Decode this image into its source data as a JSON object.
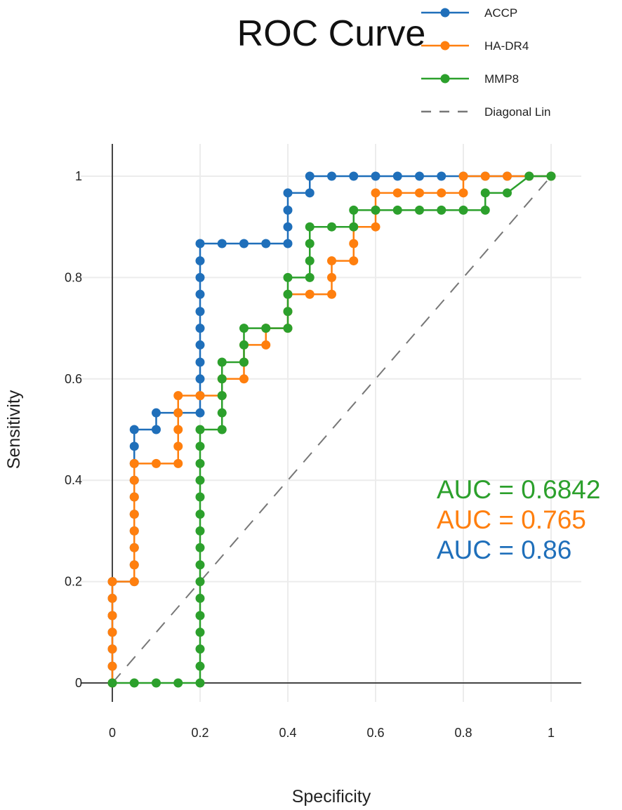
{
  "chart_data": {
    "type": "line",
    "title": "ROC Curve",
    "xlabel": "Specificity",
    "ylabel": "Sensitivity",
    "xlim": [
      0,
      1
    ],
    "ylim": [
      0,
      1
    ],
    "grid": true,
    "legend_position": "top-right",
    "xticks": [
      "0",
      "0.2",
      "0.4",
      "0.6",
      "0.8",
      "1"
    ],
    "yticks": [
      "0",
      "0.2",
      "0.4",
      "0.6",
      "0.8",
      "1"
    ],
    "series": [
      {
        "name": "ACCP",
        "color": "#1f6fba",
        "points": [
          [
            0,
            0
          ],
          [
            0,
            0.033
          ],
          [
            0,
            0.067
          ],
          [
            0,
            0.1
          ],
          [
            0,
            0.133
          ],
          [
            0,
            0.167
          ],
          [
            0,
            0.2
          ],
          [
            0.05,
            0.2
          ],
          [
            0.05,
            0.233
          ],
          [
            0.05,
            0.267
          ],
          [
            0.05,
            0.3
          ],
          [
            0.05,
            0.333
          ],
          [
            0.05,
            0.367
          ],
          [
            0.05,
            0.4
          ],
          [
            0.05,
            0.433
          ],
          [
            0.05,
            0.467
          ],
          [
            0.05,
            0.5
          ],
          [
            0.1,
            0.5
          ],
          [
            0.1,
            0.533
          ],
          [
            0.15,
            0.533
          ],
          [
            0.2,
            0.533
          ],
          [
            0.2,
            0.567
          ],
          [
            0.2,
            0.6
          ],
          [
            0.2,
            0.633
          ],
          [
            0.2,
            0.667
          ],
          [
            0.2,
            0.7
          ],
          [
            0.2,
            0.733
          ],
          [
            0.2,
            0.767
          ],
          [
            0.2,
            0.8
          ],
          [
            0.2,
            0.833
          ],
          [
            0.2,
            0.867
          ],
          [
            0.25,
            0.867
          ],
          [
            0.3,
            0.867
          ],
          [
            0.35,
            0.867
          ],
          [
            0.4,
            0.867
          ],
          [
            0.4,
            0.9
          ],
          [
            0.4,
            0.933
          ],
          [
            0.4,
            0.967
          ],
          [
            0.45,
            0.967
          ],
          [
            0.45,
            1
          ],
          [
            0.5,
            1
          ],
          [
            0.55,
            1
          ],
          [
            0.6,
            1
          ],
          [
            0.65,
            1
          ],
          [
            0.7,
            1
          ],
          [
            0.75,
            1
          ],
          [
            0.8,
            1
          ],
          [
            0.85,
            1
          ],
          [
            0.9,
            1
          ],
          [
            0.95,
            1
          ],
          [
            1,
            1
          ]
        ]
      },
      {
        "name": "HA-DR4",
        "color": "#ff7f0e",
        "points": [
          [
            0,
            0
          ],
          [
            0,
            0.033
          ],
          [
            0,
            0.067
          ],
          [
            0,
            0.1
          ],
          [
            0,
            0.133
          ],
          [
            0,
            0.167
          ],
          [
            0,
            0.2
          ],
          [
            0.05,
            0.2
          ],
          [
            0.05,
            0.233
          ],
          [
            0.05,
            0.267
          ],
          [
            0.05,
            0.3
          ],
          [
            0.05,
            0.333
          ],
          [
            0.05,
            0.367
          ],
          [
            0.05,
            0.4
          ],
          [
            0.05,
            0.433
          ],
          [
            0.1,
            0.433
          ],
          [
            0.15,
            0.433
          ],
          [
            0.15,
            0.467
          ],
          [
            0.15,
            0.5
          ],
          [
            0.15,
            0.533
          ],
          [
            0.15,
            0.567
          ],
          [
            0.2,
            0.567
          ],
          [
            0.25,
            0.567
          ],
          [
            0.25,
            0.6
          ],
          [
            0.3,
            0.6
          ],
          [
            0.3,
            0.633
          ],
          [
            0.3,
            0.667
          ],
          [
            0.35,
            0.667
          ],
          [
            0.35,
            0.7
          ],
          [
            0.4,
            0.7
          ],
          [
            0.4,
            0.733
          ],
          [
            0.4,
            0.767
          ],
          [
            0.45,
            0.767
          ],
          [
            0.5,
            0.767
          ],
          [
            0.5,
            0.8
          ],
          [
            0.5,
            0.833
          ],
          [
            0.55,
            0.833
          ],
          [
            0.55,
            0.867
          ],
          [
            0.55,
            0.9
          ],
          [
            0.6,
            0.9
          ],
          [
            0.6,
            0.933
          ],
          [
            0.6,
            0.967
          ],
          [
            0.65,
            0.967
          ],
          [
            0.7,
            0.967
          ],
          [
            0.75,
            0.967
          ],
          [
            0.8,
            0.967
          ],
          [
            0.8,
            1
          ],
          [
            0.85,
            1
          ],
          [
            0.9,
            1
          ],
          [
            0.95,
            1
          ],
          [
            1,
            1
          ]
        ]
      },
      {
        "name": "MMP8",
        "color": "#2ca02c",
        "points": [
          [
            0,
            0
          ],
          [
            0.05,
            0
          ],
          [
            0.1,
            0
          ],
          [
            0.15,
            0
          ],
          [
            0.2,
            0
          ],
          [
            0.2,
            0.033
          ],
          [
            0.2,
            0.067
          ],
          [
            0.2,
            0.1
          ],
          [
            0.2,
            0.133
          ],
          [
            0.2,
            0.167
          ],
          [
            0.2,
            0.2
          ],
          [
            0.2,
            0.233
          ],
          [
            0.2,
            0.267
          ],
          [
            0.2,
            0.3
          ],
          [
            0.2,
            0.333
          ],
          [
            0.2,
            0.367
          ],
          [
            0.2,
            0.4
          ],
          [
            0.2,
            0.433
          ],
          [
            0.2,
            0.467
          ],
          [
            0.2,
            0.5
          ],
          [
            0.25,
            0.5
          ],
          [
            0.25,
            0.533
          ],
          [
            0.25,
            0.567
          ],
          [
            0.25,
            0.6
          ],
          [
            0.25,
            0.633
          ],
          [
            0.3,
            0.633
          ],
          [
            0.3,
            0.667
          ],
          [
            0.3,
            0.7
          ],
          [
            0.35,
            0.7
          ],
          [
            0.4,
            0.7
          ],
          [
            0.4,
            0.733
          ],
          [
            0.4,
            0.767
          ],
          [
            0.4,
            0.8
          ],
          [
            0.45,
            0.8
          ],
          [
            0.45,
            0.833
          ],
          [
            0.45,
            0.867
          ],
          [
            0.45,
            0.9
          ],
          [
            0.5,
            0.9
          ],
          [
            0.55,
            0.9
          ],
          [
            0.55,
            0.933
          ],
          [
            0.6,
            0.933
          ],
          [
            0.65,
            0.933
          ],
          [
            0.7,
            0.933
          ],
          [
            0.75,
            0.933
          ],
          [
            0.8,
            0.933
          ],
          [
            0.85,
            0.933
          ],
          [
            0.85,
            0.967
          ],
          [
            0.9,
            0.967
          ],
          [
            0.95,
            1
          ],
          [
            1,
            1
          ]
        ]
      },
      {
        "name": "Diagonal Lin",
        "color": "#777777",
        "dash": true,
        "points": [
          [
            0,
            0
          ],
          [
            1,
            1
          ]
        ]
      }
    ],
    "annotations": [
      {
        "text": "AUC = 0.6842",
        "color": "#2ca02c"
      },
      {
        "text": "AUC = 0.765",
        "color": "#ff7f0e"
      },
      {
        "text": "AUC = 0.86",
        "color": "#1f6fba"
      }
    ]
  }
}
